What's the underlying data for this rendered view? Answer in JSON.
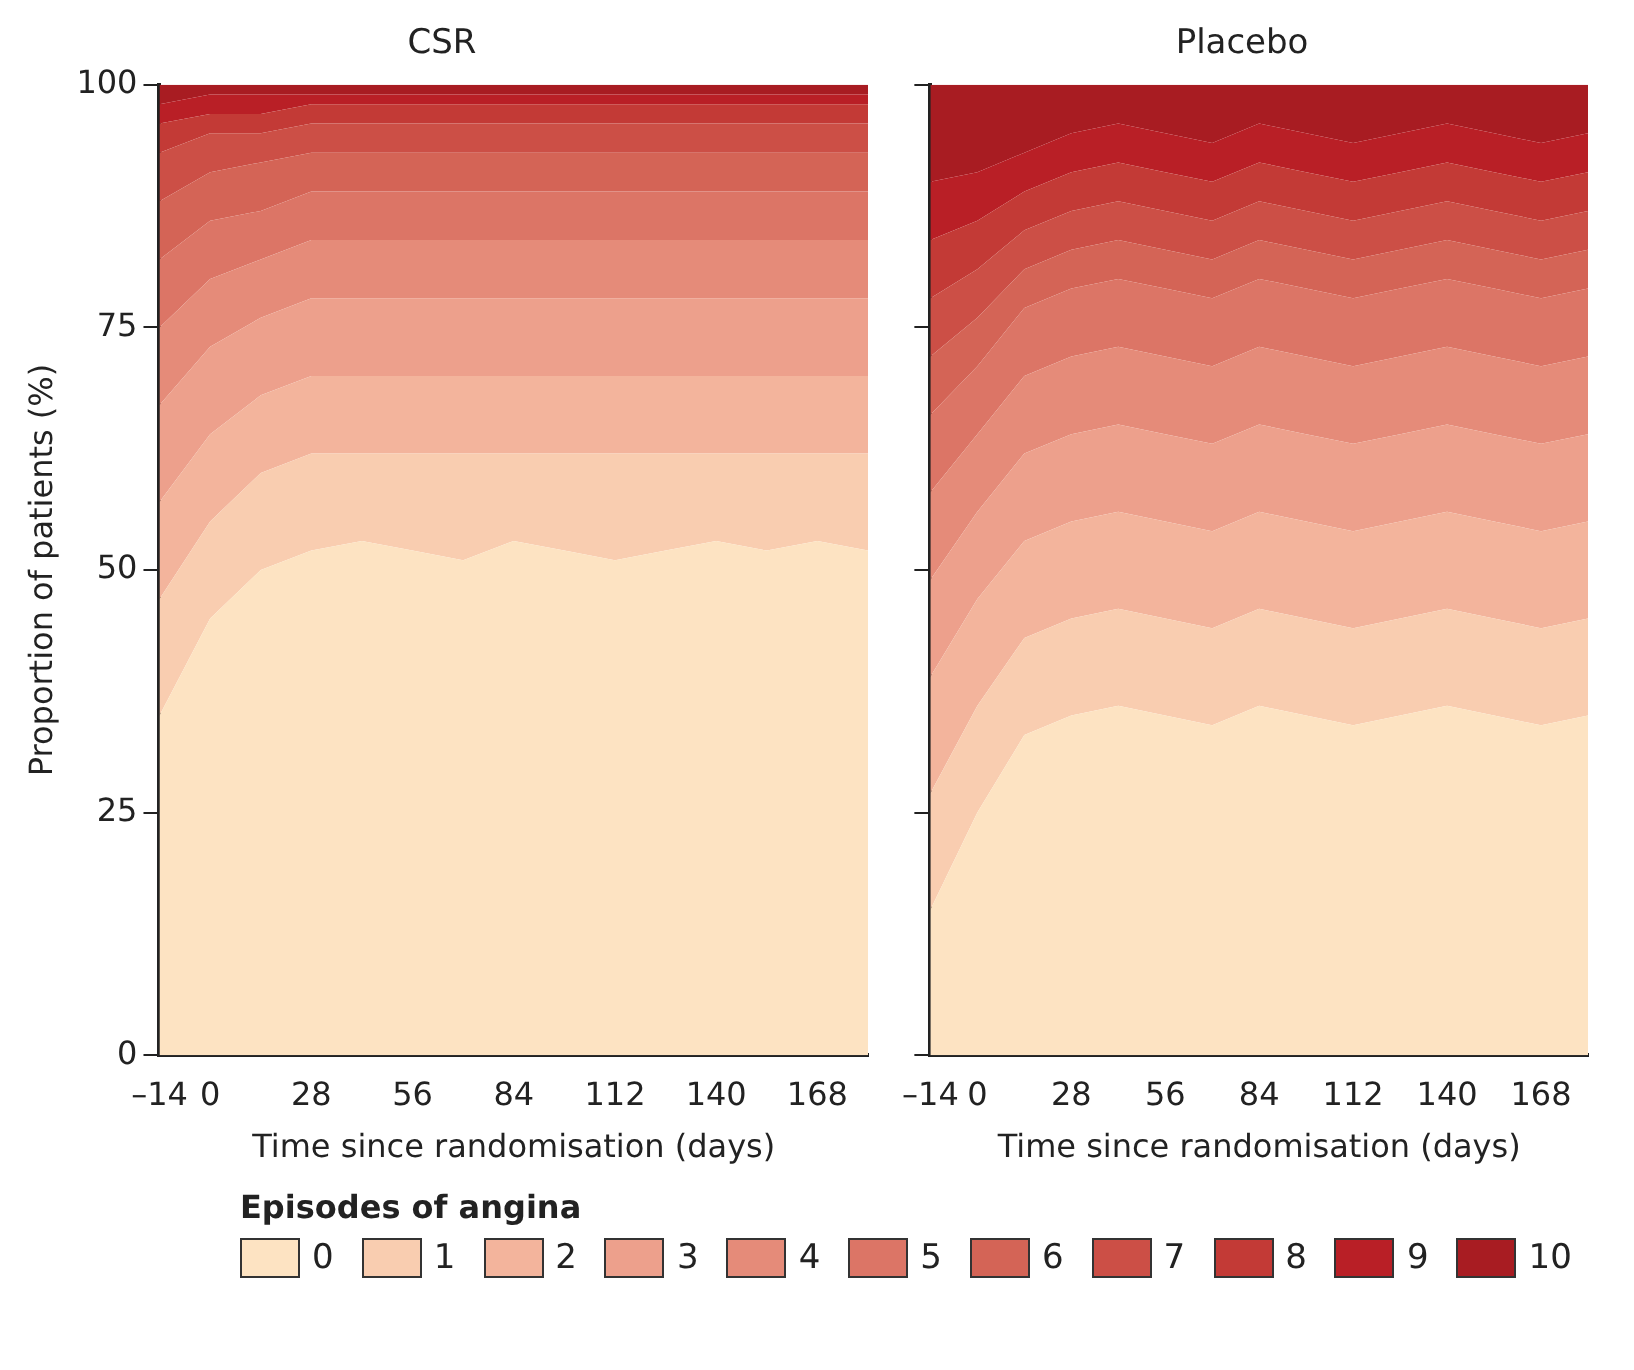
{
  "chart_data": [
    {
      "type": "area",
      "title": "CSR",
      "xlabel": "Time since randomisation (days)",
      "ylabel": "Proportion of patients (%)",
      "legend_title": "Episodes of angina",
      "legend": "bottom",
      "stacked": true,
      "grid": false,
      "x": [
        -14,
        0,
        14,
        28,
        42,
        56,
        70,
        84,
        98,
        112,
        126,
        140,
        154,
        168,
        182
      ],
      "xlim": [
        -14,
        182
      ],
      "xticks": [
        {
          "value": -14,
          "label": "–14"
        },
        0,
        28,
        56,
        84,
        112,
        140,
        168
      ],
      "ylim": [
        0,
        100
      ],
      "yticks": [
        0,
        25,
        50,
        75,
        100
      ],
      "series": [
        {
          "name": "0",
          "color": "#fde3c2",
          "values": [
            35,
            45,
            50,
            52,
            53,
            52,
            51,
            53,
            52,
            51,
            52,
            53,
            52,
            53,
            52
          ]
        },
        {
          "name": "1",
          "color": "#f9cdb0",
          "values": [
            12,
            10,
            10,
            10,
            9,
            10,
            11,
            9,
            10,
            11,
            10,
            9,
            10,
            9,
            10
          ]
        },
        {
          "name": "2",
          "color": "#f3b49c",
          "values": [
            10,
            9,
            8,
            8,
            8,
            8,
            8,
            8,
            8,
            8,
            8,
            8,
            8,
            8,
            8
          ]
        },
        {
          "name": "3",
          "color": "#eda08c",
          "values": [
            10,
            9,
            8,
            8,
            8,
            8,
            8,
            8,
            8,
            8,
            8,
            8,
            8,
            8,
            8
          ]
        },
        {
          "name": "4",
          "color": "#e58b79",
          "values": [
            8,
            7,
            6,
            6,
            6,
            6,
            6,
            6,
            6,
            6,
            6,
            6,
            6,
            6,
            6
          ]
        },
        {
          "name": "5",
          "color": "#dc7566",
          "values": [
            7,
            6,
            5,
            5,
            5,
            5,
            5,
            5,
            5,
            5,
            5,
            5,
            5,
            5,
            5
          ]
        },
        {
          "name": "6",
          "color": "#d46456",
          "values": [
            6,
            5,
            5,
            4,
            4,
            4,
            4,
            4,
            4,
            4,
            4,
            4,
            4,
            4,
            4
          ]
        },
        {
          "name": "7",
          "color": "#cc4f46",
          "values": [
            5,
            4,
            3,
            3,
            3,
            3,
            3,
            3,
            3,
            3,
            3,
            3,
            3,
            3,
            3
          ]
        },
        {
          "name": "8",
          "color": "#c33a36",
          "values": [
            3,
            2,
            2,
            2,
            2,
            2,
            2,
            2,
            2,
            2,
            2,
            2,
            2,
            2,
            2
          ]
        },
        {
          "name": "9",
          "color": "#b91f26",
          "values": [
            2,
            2,
            2,
            1,
            1,
            1,
            1,
            1,
            1,
            1,
            1,
            1,
            1,
            1,
            1
          ]
        },
        {
          "name": "10",
          "color": "#a81c22",
          "values": [
            2,
            1,
            1,
            1,
            1,
            1,
            1,
            1,
            1,
            1,
            1,
            1,
            1,
            1,
            1
          ]
        }
      ]
    },
    {
      "type": "area",
      "title": "Placebo",
      "xlabel": "Time since randomisation (days)",
      "legend": "bottom",
      "stacked": true,
      "grid": false,
      "tick_labels": "x",
      "x": [
        -14,
        0,
        14,
        28,
        42,
        56,
        70,
        84,
        98,
        112,
        126,
        140,
        154,
        168,
        182
      ],
      "xlim": [
        -14,
        182
      ],
      "xticks": [
        {
          "value": -14,
          "label": "–14"
        },
        0,
        28,
        56,
        84,
        112,
        140,
        168
      ],
      "ylim": [
        0,
        100
      ],
      "yticks": [
        0,
        25,
        50,
        75,
        100
      ],
      "series": [
        {
          "name": "0",
          "color": "#fde3c2",
          "values": [
            15,
            25,
            33,
            35,
            36,
            35,
            34,
            36,
            35,
            34,
            35,
            36,
            35,
            34,
            35
          ]
        },
        {
          "name": "1",
          "color": "#f9cdb0",
          "values": [
            12,
            11,
            10,
            10,
            10,
            10,
            10,
            10,
            10,
            10,
            10,
            10,
            10,
            10,
            10
          ]
        },
        {
          "name": "2",
          "color": "#f3b49c",
          "values": [
            12,
            11,
            10,
            10,
            10,
            10,
            10,
            10,
            10,
            10,
            10,
            10,
            10,
            10,
            10
          ]
        },
        {
          "name": "3",
          "color": "#eda08c",
          "values": [
            10,
            9,
            9,
            9,
            9,
            9,
            9,
            9,
            9,
            9,
            9,
            9,
            9,
            9,
            9
          ]
        },
        {
          "name": "4",
          "color": "#e58b79",
          "values": [
            9,
            8,
            8,
            8,
            8,
            8,
            8,
            8,
            8,
            8,
            8,
            8,
            8,
            8,
            8
          ]
        },
        {
          "name": "5",
          "color": "#dc7566",
          "values": [
            8,
            7,
            7,
            7,
            7,
            7,
            7,
            7,
            7,
            7,
            7,
            7,
            7,
            7,
            7
          ]
        },
        {
          "name": "6",
          "color": "#d46456",
          "values": [
            6,
            5,
            4,
            4,
            4,
            4,
            4,
            4,
            4,
            4,
            4,
            4,
            4,
            4,
            4
          ]
        },
        {
          "name": "7",
          "color": "#cc4f46",
          "values": [
            6,
            5,
            4,
            4,
            4,
            4,
            4,
            4,
            4,
            4,
            4,
            4,
            4,
            4,
            4
          ]
        },
        {
          "name": "8",
          "color": "#c33a36",
          "values": [
            6,
            5,
            4,
            4,
            4,
            4,
            4,
            4,
            4,
            4,
            4,
            4,
            4,
            4,
            4
          ]
        },
        {
          "name": "9",
          "color": "#b91f26",
          "values": [
            6,
            5,
            4,
            4,
            4,
            4,
            4,
            4,
            4,
            4,
            4,
            4,
            4,
            4,
            4
          ]
        },
        {
          "name": "10",
          "color": "#a81c22",
          "values": [
            10,
            9,
            7,
            5,
            4,
            5,
            6,
            4,
            5,
            6,
            5,
            4,
            5,
            6,
            5
          ]
        }
      ]
    }
  ]
}
